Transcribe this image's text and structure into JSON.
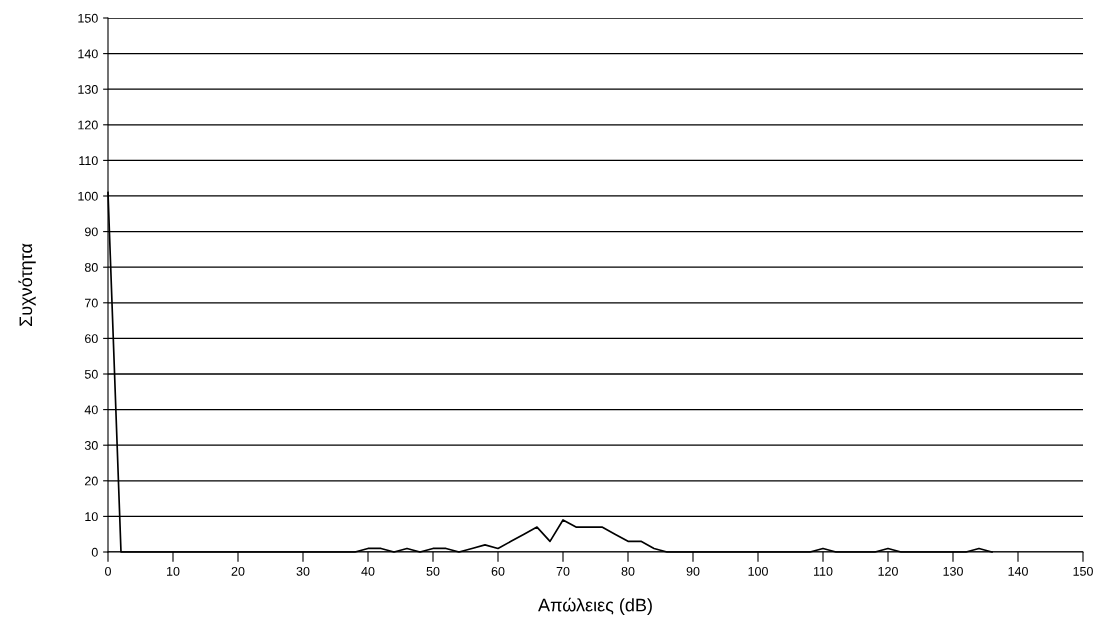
{
  "chart_data": {
    "type": "line",
    "xlabel": "Απώλειες (dB)",
    "ylabel": "Συχνότητα",
    "x": [
      0,
      2,
      38,
      40,
      42,
      44,
      46,
      48,
      50,
      52,
      54,
      56,
      58,
      60,
      62,
      64,
      66,
      68,
      70,
      72,
      74,
      76,
      78,
      80,
      82,
      84,
      86,
      108,
      110,
      112,
      118,
      120,
      122,
      132,
      134,
      136
    ],
    "series": [
      {
        "color": "#000000",
        "values": [
          101,
          0,
          0,
          1,
          1,
          0,
          1,
          0,
          1,
          1,
          0,
          1,
          2,
          1,
          3,
          5,
          7,
          3,
          9,
          7,
          7,
          7,
          5,
          3,
          3,
          1,
          0,
          0,
          1,
          0,
          0,
          1,
          0,
          0,
          1,
          0
        ]
      }
    ],
    "xlim": [
      0,
      150
    ],
    "ylim": [
      0,
      150
    ],
    "xticks": [
      0,
      10,
      20,
      30,
      40,
      50,
      60,
      70,
      80,
      90,
      100,
      110,
      120,
      130,
      140,
      150
    ],
    "yticks": [
      0,
      10,
      20,
      30,
      40,
      50,
      60,
      70,
      80,
      90,
      100,
      110,
      120,
      130,
      140,
      150
    ],
    "grid": "y",
    "marker": "none",
    "line_style": "solid"
  }
}
